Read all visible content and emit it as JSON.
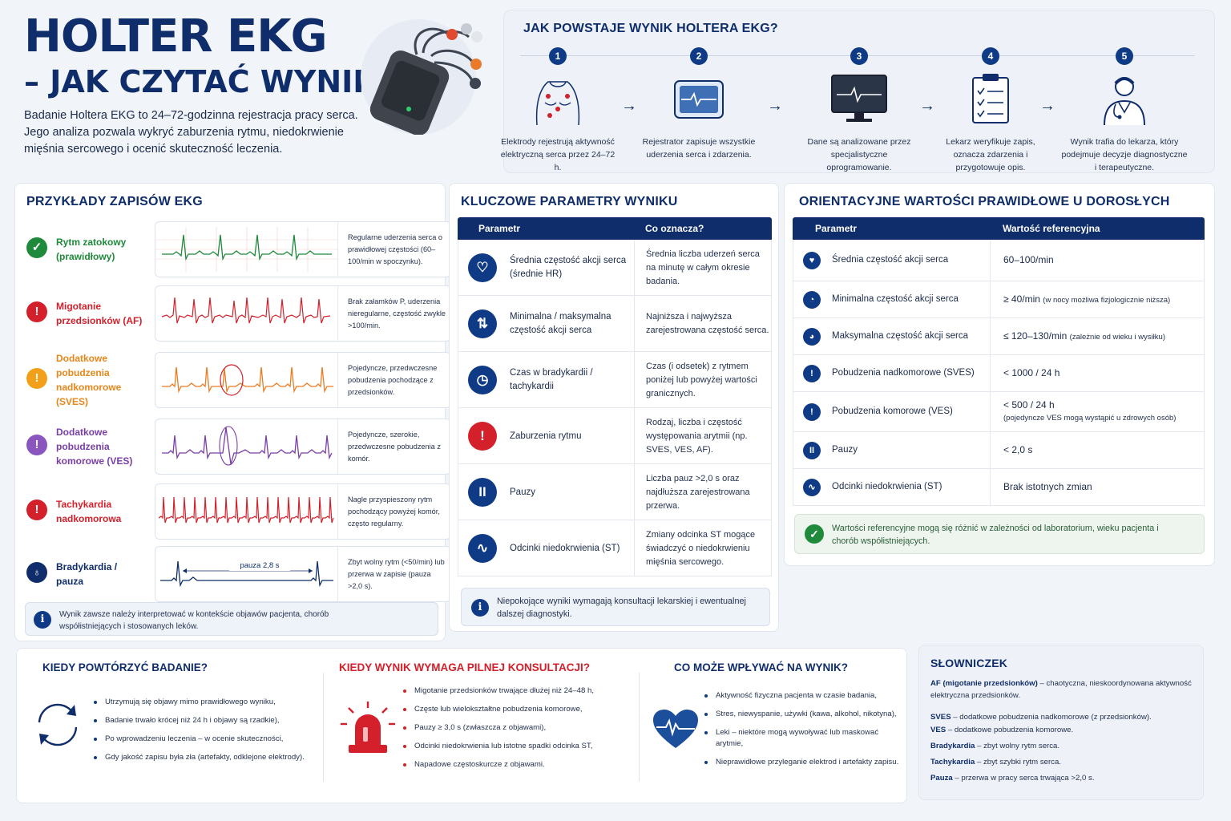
{
  "header": {
    "title": "HOLTER EKG",
    "subtitle": "– JAK CZYTAĆ WYNIKI?",
    "intro": "Badanie Holtera EKG to 24–72-godzinna rejestracja pracy serca. Jego analiza pozwala wykryć zaburzenia rytmu, niedokrwienie mięśnia sercowego i ocenić skuteczność leczenia."
  },
  "process": {
    "title": "JAK POWSTAJE WYNIK HOLTERA EKG?",
    "steps": [
      {
        "num": "1",
        "text": "Elektrody rejestrują aktywność elektryczną serca przez 24–72 h.",
        "icon": "chest-electrodes-icon"
      },
      {
        "num": "2",
        "text": "Rejestrator zapisuje wszystkie uderzenia serca i zdarzenia.",
        "icon": "recorder-icon"
      },
      {
        "num": "3",
        "text": "Dane są analizowane przez specjalistyczne oprogramowanie.",
        "icon": "monitor-icon"
      },
      {
        "num": "4",
        "text": "Lekarz weryfikuje zapis, oznacza zdarzenia i przygotowuje opis.",
        "icon": "clipboard-icon"
      },
      {
        "num": "5",
        "text": "Wynik trafia do lekarza, który podejmuje decyzje diagnostyczne i terapeutyczne.",
        "icon": "doctor-icon"
      }
    ]
  },
  "examples": {
    "title": "PRZYKŁADY ZAPISÓW EKG",
    "rows": [
      {
        "label": "Rytm zatokowy (prawidłowy)",
        "desc": "Regularne uderzenia serca o prawidłowej częstości (60–100/min w spoczynku).",
        "color": "#1f8a3b",
        "icon": "✓"
      },
      {
        "label": "Migotanie przedsionków (AF)",
        "desc": "Brak załamków P, uderzenia nieregularne, częstość zwykle >100/min.",
        "color": "#d3202a",
        "icon": "!"
      },
      {
        "label": "Dodatkowe pobudzenia nadkomorowe (SVES)",
        "desc": "Pojedyncze, przedwczesne pobudzenia pochodzące z przedsionków.",
        "color": "#f2a019",
        "icon": "!"
      },
      {
        "label": "Dodatkowe pobudzenia komorowe (VES)",
        "desc": "Pojedyncze, szerokie, przedwczesne pobudzenia z komór.",
        "color": "#7a3ea8",
        "icon": "!"
      },
      {
        "label": "Tachykardia nadkomorowa",
        "desc": "Nagle przyspieszony rytm pochodzący powyżej komór, często regularny.",
        "color": "#d3202a",
        "icon": "!"
      },
      {
        "label": "Bradykardia / pauza",
        "desc": "Zbyt wolny rytm (<50/min) lub przerwa w zapisie (pauza >2,0 s).",
        "color": "#0f2d6b",
        "icon": "♁"
      }
    ],
    "pause_label": "pauza 2,8 s",
    "note": "Wynik zawsze należy interpretować w kontekście objawów pacjenta, chorób współistniejących i stosowanych leków."
  },
  "params": {
    "title": "KLUCZOWE PARAMETRY WYNIKU",
    "col1": "Parametr",
    "col2": "Co oznacza?",
    "rows": [
      {
        "name": "Średnia częstość akcji serca (średnie HR)",
        "meaning": "Średnia liczba uderzeń serca na minutę w całym okresie badania.",
        "icon": "♡",
        "bg": "#0f3a85"
      },
      {
        "name": "Minimalna / maksymalna częstość akcji serca",
        "meaning": "Najniższa i najwyższa zarejestrowana częstość serca.",
        "icon": "⇅",
        "bg": "#0f3a85"
      },
      {
        "name": "Czas w bradykardii / tachykardii",
        "meaning": "Czas (i odsetek) z rytmem poniżej lub powyżej wartości granicznych.",
        "icon": "◷",
        "bg": "#0f3a85"
      },
      {
        "name": "Zaburzenia rytmu",
        "meaning": "Rodzaj, liczba i częstość występowania arytmii (np. SVES, VES, AF).",
        "icon": "!",
        "bg": "#d3202a"
      },
      {
        "name": "Pauzy",
        "meaning": "Liczba pauz >2,0 s oraz najdłuższa zarejestrowana przerwa.",
        "icon": "II",
        "bg": "#0f3a85"
      },
      {
        "name": "Odcinki niedokrwienia (ST)",
        "meaning": "Zmiany odcinka ST mogące świadczyć o niedokrwieniu mięśnia sercowego.",
        "icon": "∿",
        "bg": "#0f3a85"
      }
    ],
    "note": "Niepokojące wyniki wymagają konsultacji lekarskiej i ewentualnej dalszej diagnostyki."
  },
  "ranges": {
    "title": "ORIENTACYJNE WARTOŚCI PRAWIDŁOWE U DOROSŁYCH",
    "col1": "Parametr",
    "col2": "Wartość referencyjna",
    "rows": [
      {
        "name": "Średnia częstość akcji serca",
        "value": "60–100/min",
        "extra": "",
        "icon": "♥"
      },
      {
        "name": "Minimalna częstość akcji serca",
        "value": "≥ 40/min",
        "extra": "(w nocy możliwa fizjologicznie niższa)",
        "icon": "◔"
      },
      {
        "name": "Maksymalna częstość akcji serca",
        "value": "≤ 120–130/min",
        "extra": "(zależnie od wieku i wysiłku)",
        "icon": "◕"
      },
      {
        "name": "Pobudzenia nadkomorowe (SVES)",
        "value": "< 1000 / 24 h",
        "extra": "",
        "icon": "!"
      },
      {
        "name": "Pobudzenia komorowe (VES)",
        "value": "< 500 / 24 h",
        "extra": "(pojedyncze VES mogą wystąpić u zdrowych osób)",
        "icon": "!"
      },
      {
        "name": "Pauzy",
        "value": "< 2,0 s",
        "extra": "",
        "icon": "II"
      },
      {
        "name": "Odcinki niedokrwienia (ST)",
        "value": "Brak istotnych zmian",
        "extra": "",
        "icon": "∿"
      }
    ],
    "note": "Wartości referencyjne mogą się różnić w zależności od laboratorium, wieku pacjenta i chorób współistniejących."
  },
  "repeat": {
    "title": "KIEDY POWTÓRZYĆ BADANIE?",
    "items": [
      "Utrzymują się objawy mimo prawidłowego wyniku,",
      "Badanie trwało krócej niż 24 h i objawy są rzadkie),",
      "Po wprowadzeniu leczenia – w ocenie skuteczności,",
      "Gdy jakość zapisu była zła (artefakty, odklejone elektrody)."
    ]
  },
  "urgent": {
    "title": "KIEDY WYNIK WYMAGA PILNEJ KONSULTACJI?",
    "items": [
      "Migotanie przedsionków trwające dłużej niż 24–48 h,",
      "Częste lub wielokształtne pobudzenia komorowe,",
      "Pauzy ≥ 3,0 s (zwłaszcza z objawami),",
      "Odcinki niedokrwienia lub istotne spadki odcinka ST,",
      "Napadowe częstoskurcze z objawami."
    ]
  },
  "factors": {
    "title": "CO MOŻE WPŁYWAĆ NA WYNIK?",
    "items": [
      "Aktywność fizyczna pacjenta w czasie badania,",
      "Stres, niewyspanie, używki (kawa, alkohol, nikotyna),",
      "Leki – niektóre mogą wywoływać lub maskować arytmie,",
      "Nieprawidłowe przyleganie elektrod i artefakty zapisu."
    ]
  },
  "glossary": {
    "title": "SŁOWNICZEK",
    "items": [
      {
        "term": "AF (migotanie przedsionków)",
        "def": " – chaotyczna, nieskoordynowana aktywność elektryczna przedsionków."
      },
      {
        "term": "SVES",
        "def": " – dodatkowe pobudzenia nadkomorowe (z przedsionków)."
      },
      {
        "term": "VES",
        "def": " – dodatkowe pobudzenia komorowe."
      },
      {
        "term": "Bradykardia",
        "def": " – zbyt wolny rytm serca."
      },
      {
        "term": "Tachykardia",
        "def": " – zbyt szybki rytm serca."
      },
      {
        "term": "Pauza",
        "def": " – przerwa w pracy serca trwająca >2,0 s."
      }
    ]
  }
}
